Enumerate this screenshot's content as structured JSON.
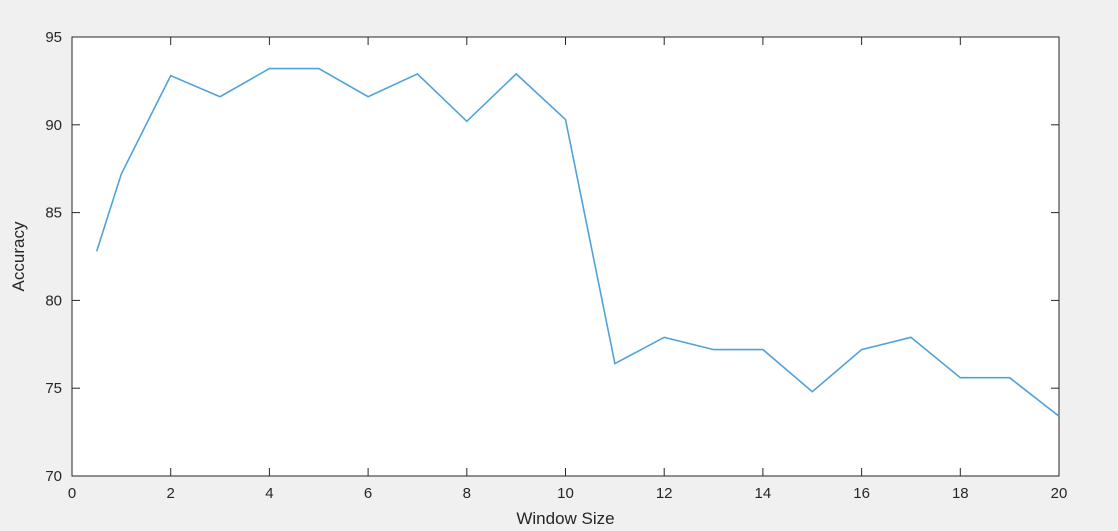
{
  "chart_data": {
    "type": "line",
    "title": "",
    "xlabel": "Window Size",
    "ylabel": "Accuracy",
    "xlim": [
      0,
      20
    ],
    "ylim": [
      70,
      95
    ],
    "xticks": [
      0,
      2,
      4,
      6,
      8,
      10,
      12,
      14,
      16,
      18,
      20
    ],
    "yticks": [
      70,
      75,
      80,
      85,
      90,
      95
    ],
    "grid": false,
    "series": [
      {
        "color": "#4fa3d8",
        "x": [
          0.5,
          1,
          2,
          3,
          4,
          5,
          6,
          7,
          8,
          9,
          10,
          11,
          12,
          13,
          14,
          15,
          16,
          17,
          18,
          19,
          20
        ],
        "y": [
          82.8,
          87.2,
          92.8,
          91.6,
          93.2,
          93.2,
          91.6,
          92.9,
          90.2,
          92.9,
          90.3,
          76.4,
          77.9,
          77.2,
          77.2,
          74.8,
          77.2,
          77.9,
          75.6,
          75.6,
          73.4
        ]
      }
    ]
  },
  "colors": {
    "background": "#f0f0f0",
    "plot_area": "#ffffff",
    "axes": "#262626",
    "line": "#4fa3d8"
  }
}
